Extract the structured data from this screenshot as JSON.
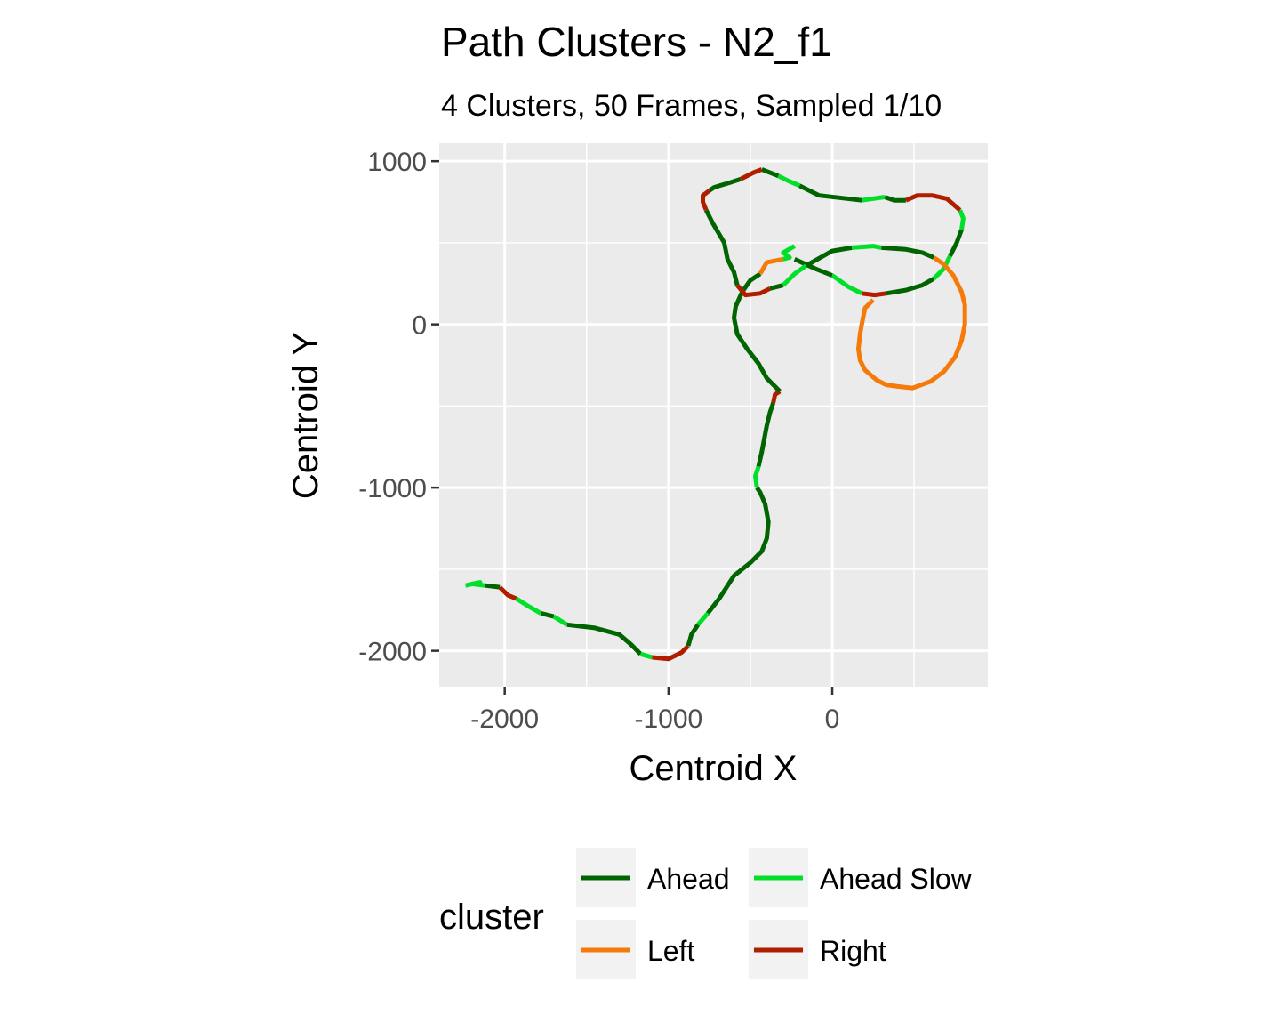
{
  "chart_data": {
    "type": "line",
    "title": "Path Clusters - N2_f1",
    "subtitle": "4 Clusters, 50 Frames, Sampled 1/10",
    "xlabel": "Centroid X",
    "ylabel": "Centroid Y",
    "xlim": [
      -2400,
      950
    ],
    "ylim": [
      -2220,
      1110
    ],
    "xticks": [
      {
        "value": -2000,
        "label": "-2000"
      },
      {
        "value": -1000,
        "label": "-1000"
      },
      {
        "value": 0,
        "label": "0"
      }
    ],
    "yticks": [
      {
        "value": 1000,
        "label": "1000"
      },
      {
        "value": 0,
        "label": "0"
      },
      {
        "value": -1000,
        "label": "-1000"
      },
      {
        "value": -2000,
        "label": "-2000"
      }
    ],
    "x_minor_gridlines": [
      -1500,
      -500,
      500
    ],
    "y_minor_gridlines": [
      500,
      -500,
      -1500
    ],
    "grid": true,
    "panel_background": "#ebebeb",
    "legend": {
      "title": "cluster",
      "position": "bottom",
      "entries": [
        {
          "name": "Ahead",
          "color": "#006400"
        },
        {
          "name": "Ahead Slow",
          "color": "#00e02a"
        },
        {
          "name": "Left",
          "color": "#f57a0a"
        },
        {
          "name": "Right",
          "color": "#b01e00"
        }
      ]
    },
    "series": [
      {
        "name": "Ahead Slow",
        "x": [
          -2240,
          -2150,
          -2200,
          -2120
        ],
        "y": [
          -1600,
          -1580,
          -1590,
          -1600
        ]
      },
      {
        "name": "Ahead",
        "x": [
          -2120,
          -2030
        ],
        "y": [
          -1600,
          -1610
        ]
      },
      {
        "name": "Right",
        "x": [
          -2030,
          -1980,
          -1930
        ],
        "y": [
          -1610,
          -1660,
          -1680
        ]
      },
      {
        "name": "Ahead Slow",
        "x": [
          -1930,
          -1850,
          -1780
        ],
        "y": [
          -1680,
          -1730,
          -1770
        ]
      },
      {
        "name": "Ahead",
        "x": [
          -1780,
          -1700
        ],
        "y": [
          -1770,
          -1790
        ]
      },
      {
        "name": "Ahead Slow",
        "x": [
          -1700,
          -1620
        ],
        "y": [
          -1790,
          -1840
        ]
      },
      {
        "name": "Ahead",
        "x": [
          -1620,
          -1450,
          -1300,
          -1230,
          -1170
        ],
        "y": [
          -1840,
          -1860,
          -1900,
          -1960,
          -2020
        ]
      },
      {
        "name": "Ahead Slow",
        "x": [
          -1170,
          -1100
        ],
        "y": [
          -2020,
          -2040
        ]
      },
      {
        "name": "Right",
        "x": [
          -1100,
          -1000,
          -920,
          -880
        ],
        "y": [
          -2040,
          -2050,
          -2010,
          -1970
        ]
      },
      {
        "name": "Ahead",
        "x": [
          -880,
          -860,
          -820
        ],
        "y": [
          -1970,
          -1900,
          -1840
        ]
      },
      {
        "name": "Ahead Slow",
        "x": [
          -820,
          -760
        ],
        "y": [
          -1840,
          -1770
        ]
      },
      {
        "name": "Ahead",
        "x": [
          -760,
          -690,
          -600,
          -500,
          -430,
          -400,
          -390,
          -410,
          -440,
          -460
        ],
        "y": [
          -1770,
          -1680,
          -1540,
          -1460,
          -1390,
          -1310,
          -1210,
          -1100,
          -1030,
          -1000
        ]
      },
      {
        "name": "Ahead Slow",
        "x": [
          -460,
          -470,
          -450
        ],
        "y": [
          -1000,
          -930,
          -870
        ]
      },
      {
        "name": "Ahead",
        "x": [
          -450,
          -430,
          -400,
          -380,
          -360
        ],
        "y": [
          -870,
          -780,
          -620,
          -540,
          -480
        ]
      },
      {
        "name": "Right",
        "x": [
          -360,
          -350,
          -320
        ],
        "y": [
          -480,
          -430,
          -410
        ]
      },
      {
        "name": "Ahead",
        "x": [
          -320,
          -400,
          -450,
          -520,
          -580,
          -600,
          -590,
          -550,
          -500,
          -440
        ],
        "y": [
          -410,
          -330,
          -240,
          -150,
          -60,
          40,
          110,
          200,
          270,
          310
        ]
      },
      {
        "name": "Left",
        "x": [
          -440,
          -400,
          -300
        ],
        "y": [
          310,
          380,
          400
        ]
      },
      {
        "name": "Ahead Slow",
        "x": [
          -300,
          -260,
          -300,
          -230
        ],
        "y": [
          400,
          410,
          440,
          480
        ]
      },
      {
        "name": "Ahead",
        "x": [
          -230,
          -100,
          0
        ],
        "y": [
          400,
          340,
          300
        ]
      },
      {
        "name": "Ahead Slow",
        "x": [
          0,
          100,
          180
        ],
        "y": [
          300,
          230,
          190
        ]
      },
      {
        "name": "Right",
        "x": [
          180,
          260,
          330
        ],
        "y": [
          190,
          180,
          190
        ]
      },
      {
        "name": "Ahead",
        "x": [
          330,
          450,
          550,
          620
        ],
        "y": [
          190,
          210,
          240,
          280
        ]
      },
      {
        "name": "Ahead Slow",
        "x": [
          620,
          680,
          720
        ],
        "y": [
          280,
          340,
          420
        ]
      },
      {
        "name": "Ahead",
        "x": [
          720,
          760,
          790
        ],
        "y": [
          420,
          500,
          580
        ]
      },
      {
        "name": "Ahead Slow",
        "x": [
          790,
          800,
          780
        ],
        "y": [
          580,
          650,
          700
        ]
      },
      {
        "name": "Right",
        "x": [
          780,
          700,
          610,
          520,
          450
        ],
        "y": [
          700,
          770,
          790,
          790,
          760
        ]
      },
      {
        "name": "Ahead",
        "x": [
          450,
          380,
          320
        ],
        "y": [
          760,
          760,
          780
        ]
      },
      {
        "name": "Ahead Slow",
        "x": [
          320,
          180
        ],
        "y": [
          780,
          760
        ]
      },
      {
        "name": "Ahead",
        "x": [
          180,
          -80,
          -200
        ],
        "y": [
          760,
          790,
          850
        ]
      },
      {
        "name": "Ahead Slow",
        "x": [
          -200,
          -270,
          -330
        ],
        "y": [
          850,
          880,
          910
        ]
      },
      {
        "name": "Ahead",
        "x": [
          -330,
          -430
        ],
        "y": [
          910,
          950
        ]
      },
      {
        "name": "Right",
        "x": [
          -430,
          -480,
          -560
        ],
        "y": [
          950,
          930,
          890
        ]
      },
      {
        "name": "Ahead",
        "x": [
          -560,
          -620,
          -720,
          -750
        ],
        "y": [
          890,
          870,
          840,
          820
        ]
      },
      {
        "name": "Right",
        "x": [
          -750,
          -790,
          -790,
          -770
        ],
        "y": [
          820,
          790,
          750,
          700
        ]
      },
      {
        "name": "Ahead",
        "x": [
          -770,
          -730,
          -660,
          -640,
          -600,
          -580
        ],
        "y": [
          700,
          620,
          500,
          400,
          320,
          240
        ]
      },
      {
        "name": "Right",
        "x": [
          -580,
          -530,
          -440,
          -380
        ],
        "y": [
          240,
          180,
          190,
          220
        ]
      },
      {
        "name": "Ahead",
        "x": [
          -380,
          -300
        ],
        "y": [
          220,
          240
        ]
      },
      {
        "name": "Ahead Slow",
        "x": [
          -300,
          -230,
          -160
        ],
        "y": [
          240,
          310,
          360
        ]
      },
      {
        "name": "Ahead",
        "x": [
          -160,
          -90,
          0,
          120
        ],
        "y": [
          360,
          400,
          450,
          470
        ]
      },
      {
        "name": "Ahead Slow",
        "x": [
          120,
          250,
          300
        ],
        "y": [
          470,
          480,
          470
        ]
      },
      {
        "name": "Ahead",
        "x": [
          300,
          450,
          550,
          620
        ],
        "y": [
          470,
          460,
          440,
          410
        ]
      },
      {
        "name": "Left",
        "x": [
          620,
          680,
          740,
          790,
          810,
          810,
          790,
          750,
          680,
          600,
          490,
          400,
          330,
          270,
          200,
          170,
          160,
          170,
          180,
          200,
          250
        ],
        "y": [
          410,
          370,
          300,
          200,
          120,
          0,
          -100,
          -200,
          -290,
          -350,
          -390,
          -380,
          -370,
          -340,
          -280,
          -220,
          -150,
          -60,
          0,
          100,
          150
        ]
      }
    ]
  }
}
